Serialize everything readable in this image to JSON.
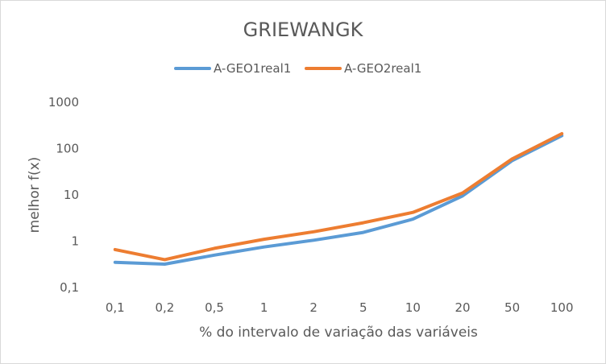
{
  "chart_data": {
    "type": "line",
    "title": "GRIEWANGK",
    "xlabel": "% do intervalo de variação das variáveis",
    "ylabel": "melhor f(x)",
    "yscale": "log",
    "ylim": [
      0.1,
      1000
    ],
    "ytick_labels": [
      "0,1",
      "1",
      "10",
      "100",
      "1000"
    ],
    "categories": [
      "0,1",
      "0,2",
      "0,5",
      "1",
      "2",
      "5",
      "10",
      "20",
      "50",
      "100"
    ],
    "legend_position": "top",
    "grid": false,
    "series": [
      {
        "name": "A-GEO1real1",
        "color": "#5b9bd5",
        "values": [
          0.35,
          0.32,
          0.5,
          0.75,
          1.05,
          1.55,
          3.0,
          9.5,
          55,
          190
        ]
      },
      {
        "name": "A-GEO2real1",
        "color": "#ed7d31",
        "values": [
          0.66,
          0.4,
          0.7,
          1.1,
          1.6,
          2.5,
          4.2,
          11,
          60,
          210
        ]
      }
    ]
  }
}
